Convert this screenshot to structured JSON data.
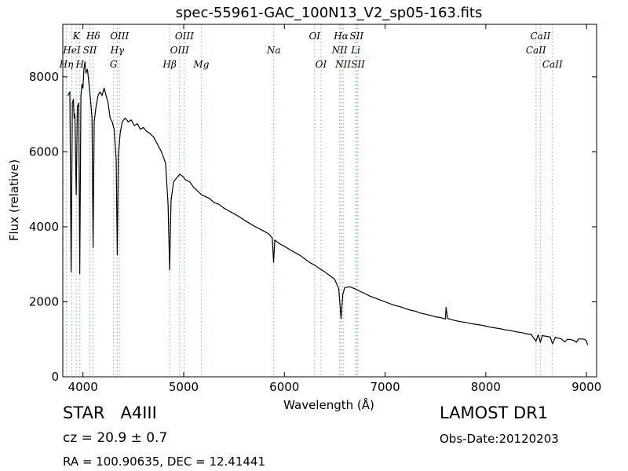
{
  "chart_data": {
    "type": "line",
    "title": "spec-55961-GAC_100N13_V2_sp05-163.fits",
    "xlabel": "Wavelength (Å)",
    "ylabel": "Flux (relative)",
    "xlim": [
      3800,
      9100
    ],
    "ylim": [
      0,
      9400
    ],
    "xticks": [
      4000,
      5000,
      6000,
      7000,
      8000,
      9000
    ],
    "yticks": [
      0,
      2000,
      4000,
      6000,
      8000
    ],
    "grid": false,
    "series": [
      {
        "color": "#000000",
        "points": [
          [
            3850,
            7500
          ],
          [
            3870,
            7600
          ],
          [
            3883,
            2800
          ],
          [
            3895,
            7300
          ],
          [
            3905,
            7400
          ],
          [
            3912,
            6900
          ],
          [
            3920,
            7000
          ],
          [
            3933,
            4850
          ],
          [
            3945,
            7200
          ],
          [
            3958,
            7300
          ],
          [
            3968,
            2750
          ],
          [
            3980,
            7500
          ],
          [
            3990,
            7800
          ],
          [
            4000,
            7700
          ],
          [
            4010,
            8200
          ],
          [
            4020,
            8400
          ],
          [
            4030,
            8100
          ],
          [
            4045,
            8200
          ],
          [
            4060,
            7800
          ],
          [
            4075,
            7400
          ],
          [
            4090,
            6900
          ],
          [
            4101,
            3450
          ],
          [
            4112,
            6800
          ],
          [
            4130,
            7200
          ],
          [
            4150,
            7500
          ],
          [
            4170,
            7600
          ],
          [
            4190,
            7500
          ],
          [
            4210,
            7700
          ],
          [
            4230,
            7500
          ],
          [
            4250,
            7300
          ],
          [
            4270,
            6900
          ],
          [
            4290,
            6800
          ],
          [
            4310,
            6600
          ],
          [
            4330,
            5800
          ],
          [
            4341,
            3250
          ],
          [
            4352,
            5900
          ],
          [
            4370,
            6500
          ],
          [
            4390,
            6800
          ],
          [
            4420,
            6900
          ],
          [
            4450,
            6800
          ],
          [
            4480,
            6850
          ],
          [
            4510,
            6700
          ],
          [
            4540,
            6750
          ],
          [
            4570,
            6600
          ],
          [
            4600,
            6650
          ],
          [
            4630,
            6550
          ],
          [
            4660,
            6500
          ],
          [
            4700,
            6400
          ],
          [
            4740,
            6200
          ],
          [
            4780,
            6000
          ],
          [
            4820,
            5700
          ],
          [
            4845,
            4600
          ],
          [
            4861,
            2850
          ],
          [
            4875,
            4700
          ],
          [
            4900,
            5200
          ],
          [
            4930,
            5300
          ],
          [
            4960,
            5400
          ],
          [
            4990,
            5350
          ],
          [
            5020,
            5250
          ],
          [
            5060,
            5200
          ],
          [
            5100,
            5050
          ],
          [
            5140,
            4950
          ],
          [
            5180,
            4850
          ],
          [
            5220,
            4800
          ],
          [
            5260,
            4750
          ],
          [
            5300,
            4650
          ],
          [
            5350,
            4600
          ],
          [
            5400,
            4500
          ],
          [
            5450,
            4420
          ],
          [
            5500,
            4350
          ],
          [
            5550,
            4270
          ],
          [
            5600,
            4180
          ],
          [
            5650,
            4100
          ],
          [
            5700,
            4020
          ],
          [
            5750,
            3950
          ],
          [
            5800,
            3880
          ],
          [
            5850,
            3800
          ],
          [
            5880,
            3700
          ],
          [
            5893,
            3050
          ],
          [
            5905,
            3650
          ],
          [
            5950,
            3550
          ],
          [
            6000,
            3480
          ],
          [
            6050,
            3400
          ],
          [
            6100,
            3320
          ],
          [
            6150,
            3250
          ],
          [
            6200,
            3150
          ],
          [
            6250,
            3050
          ],
          [
            6300,
            2980
          ],
          [
            6350,
            2880
          ],
          [
            6400,
            2800
          ],
          [
            6450,
            2700
          ],
          [
            6500,
            2600
          ],
          [
            6540,
            2350
          ],
          [
            6563,
            1550
          ],
          [
            6580,
            2200
          ],
          [
            6600,
            2380
          ],
          [
            6650,
            2400
          ],
          [
            6700,
            2350
          ],
          [
            6750,
            2280
          ],
          [
            6800,
            2220
          ],
          [
            6850,
            2150
          ],
          [
            6900,
            2100
          ],
          [
            6950,
            2050
          ],
          [
            7000,
            2000
          ],
          [
            7050,
            1950
          ],
          [
            7100,
            1900
          ],
          [
            7150,
            1870
          ],
          [
            7200,
            1820
          ],
          [
            7250,
            1780
          ],
          [
            7300,
            1750
          ],
          [
            7350,
            1700
          ],
          [
            7400,
            1670
          ],
          [
            7450,
            1640
          ],
          [
            7500,
            1600
          ],
          [
            7550,
            1580
          ],
          [
            7600,
            1540
          ],
          [
            7605,
            1850
          ],
          [
            7620,
            1560
          ],
          [
            7650,
            1530
          ],
          [
            7700,
            1500
          ],
          [
            7750,
            1470
          ],
          [
            7800,
            1450
          ],
          [
            7850,
            1420
          ],
          [
            7900,
            1400
          ],
          [
            7950,
            1380
          ],
          [
            8000,
            1350
          ],
          [
            8050,
            1320
          ],
          [
            8100,
            1300
          ],
          [
            8150,
            1280
          ],
          [
            8200,
            1250
          ],
          [
            8250,
            1230
          ],
          [
            8300,
            1200
          ],
          [
            8350,
            1180
          ],
          [
            8400,
            1150
          ],
          [
            8450,
            1130
          ],
          [
            8498,
            950
          ],
          [
            8520,
            1120
          ],
          [
            8542,
            920
          ],
          [
            8560,
            1100
          ],
          [
            8600,
            1080
          ],
          [
            8640,
            1060
          ],
          [
            8662,
            880
          ],
          [
            8690,
            1050
          ],
          [
            8720,
            1030
          ],
          [
            8750,
            1010
          ],
          [
            8785,
            930
          ],
          [
            8810,
            1000
          ],
          [
            8850,
            990
          ],
          [
            8880,
            960
          ],
          [
            8900,
            920
          ],
          [
            8920,
            1010
          ],
          [
            8950,
            1010
          ],
          [
            8980,
            1000
          ],
          [
            9000,
            950
          ],
          [
            9010,
            850
          ]
        ]
      }
    ],
    "line_markers": [
      {
        "label": "Hη",
        "wavelength": 3835,
        "row": 3
      },
      {
        "label": "HeI",
        "wavelength": 3889,
        "row": 2
      },
      {
        "label": "K",
        "wavelength": 3934,
        "row": 1
      },
      {
        "label": "H",
        "wavelength": 3969,
        "row": 3
      },
      {
        "label": "SII",
        "wavelength": 4069,
        "row": 2
      },
      {
        "label": "Hδ",
        "wavelength": 4102,
        "row": 1
      },
      {
        "label": "G",
        "wavelength": 4304,
        "row": 4
      },
      {
        "label": "Hγ",
        "wavelength": 4341,
        "row": 2
      },
      {
        "label": "OIII",
        "wavelength": 4363,
        "row": 1
      },
      {
        "label": "Hβ",
        "wavelength": 4861,
        "row": 3
      },
      {
        "label": "OIII",
        "wavelength": 4959,
        "row": 2
      },
      {
        "label": "OIII",
        "wavelength": 5007,
        "row": 1
      },
      {
        "label": "Mg",
        "wavelength": 5175,
        "row": 3
      },
      {
        "label": "Na",
        "wavelength": 5894,
        "row": 2
      },
      {
        "label": "OI",
        "wavelength": 6300,
        "row": 1
      },
      {
        "label": "OI",
        "wavelength": 6364,
        "row": 3
      },
      {
        "label": "NII",
        "wavelength": 6548,
        "row": 2
      },
      {
        "label": "Hα",
        "wavelength": 6563,
        "row": 1
      },
      {
        "label": "NII",
        "wavelength": 6583,
        "row": 3
      },
      {
        "label": "Li",
        "wavelength": 6708,
        "row": 2
      },
      {
        "label": "SII",
        "wavelength": 6717,
        "row": 1
      },
      {
        "label": "SII",
        "wavelength": 6731,
        "row": 3
      },
      {
        "label": "CaII",
        "wavelength": 8498,
        "row": 2
      },
      {
        "label": "CaII",
        "wavelength": 8542,
        "row": 1
      },
      {
        "label": "CaII",
        "wavelength": 8662,
        "row": 3
      }
    ],
    "marker_color": "#88cc88"
  },
  "info": {
    "class_label": "STAR",
    "subclass": "A4III",
    "survey": "LAMOST DR1",
    "cz": "cz = 20.9 ± 0.7",
    "obs_date": "Obs-Date:20120203",
    "coords": "RA = 100.90635, DEC = 12.41441"
  }
}
